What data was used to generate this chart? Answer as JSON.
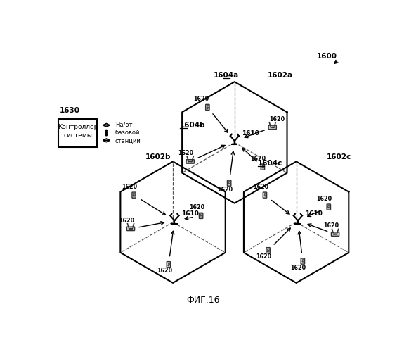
{
  "title": "ФИГ.16",
  "bg_color": "#ffffff",
  "text_color": "#000000",
  "label_1600": "1600",
  "label_1602a": "1602a",
  "label_1602b": "1602b",
  "label_1602c": "1602c",
  "label_1604a": "1604a",
  "label_1604b": "1604b",
  "label_1604c": "1604c",
  "label_1610": "1610",
  "label_1620": "1620",
  "label_1630": "1630",
  "legend_text1": "На/от",
  "legend_text2": "базовой",
  "legend_text3": "станции",
  "controller_text": "Контроллер\nсистемы",
  "hex_color": "#000000",
  "dashed_color": "#555555",
  "arrow_color": "#000000"
}
